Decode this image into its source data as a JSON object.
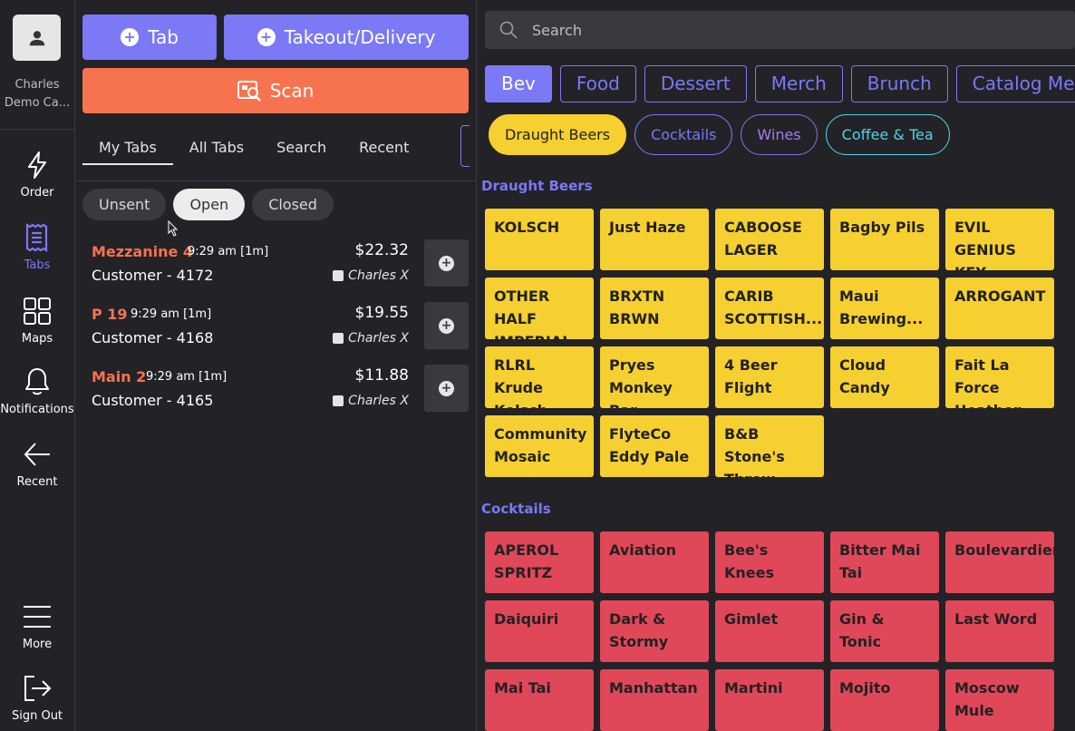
{
  "rail": {
    "user_line1": "Charles",
    "user_line2": "Demo Ca...",
    "items": [
      {
        "label": "Order",
        "icon": "lightning-icon"
      },
      {
        "label": "Tabs",
        "icon": "receipt-icon"
      },
      {
        "label": "Maps",
        "icon": "grid-icon"
      },
      {
        "label": "Notifications",
        "icon": "bell-icon"
      },
      {
        "label": "Recent",
        "icon": "arrow-left-icon"
      },
      {
        "label": "More",
        "icon": "hamburger-icon"
      },
      {
        "label": "Sign Out",
        "icon": "sign-out-icon"
      }
    ]
  },
  "panel": {
    "tab_button": "Tab",
    "takeout_button": "Takeout/Delivery",
    "scan_button": "Scan",
    "subtabs": [
      "My Tabs",
      "All Tabs",
      "Search",
      "Recent"
    ],
    "filters": [
      "Unsent",
      "Open",
      "Closed"
    ],
    "tabs": [
      {
        "location": "Mezzanine 4",
        "time": "9:29 am [1m]",
        "customer": "Customer - 4172",
        "amount": "$22.32",
        "server": "Charles X"
      },
      {
        "location": "P 19",
        "time": "9:29 am [1m]",
        "customer": "Customer - 4168",
        "amount": "$19.55",
        "server": "Charles X"
      },
      {
        "location": "Main 2",
        "time": "9:29 am [1m]",
        "customer": "Customer - 4165",
        "amount": "$11.88",
        "server": "Charles X"
      }
    ]
  },
  "menu": {
    "search_placeholder": "Search",
    "categories": [
      "Bev",
      "Food",
      "Dessert",
      "Merch",
      "Brunch",
      "Catalog Menu"
    ],
    "subcategories": [
      "Draught Beers",
      "Cocktails",
      "Wines",
      "Coffee & Tea"
    ],
    "draught_title": "Draught Beers",
    "draught_items": [
      "KOLSCH",
      "Just Haze",
      "CABOOSE LAGER",
      "Bagby Pils",
      "EVIL GENIUS KEY LIME...",
      "OTHER HALF IMPERIAL...",
      "BRXTN BRWN",
      "CARIB SCOTTISH...",
      "Maui Brewing...",
      "ARROGANT",
      "RLRL Krude Kolsch",
      "Pryes Monkey Bar",
      "4 Beer Flight",
      "Cloud Candy",
      "Fait La Force Heathen",
      "Community Mosaic",
      "FlyteCo Eddy Pale",
      "B&B Stone's Throw"
    ],
    "cocktails_title": "Cocktails",
    "cocktail_items": [
      "APEROL SPRITZ",
      "Aviation",
      "Bee's Knees",
      "Bitter Mai Tai",
      "Boulevardier",
      "Daiquiri",
      "Dark & Stormy",
      "Gimlet",
      "Gin & Tonic",
      "Last Word",
      "Mai Tai",
      "Manhattan",
      "Martini",
      "Mojito",
      "Moscow Mule"
    ]
  },
  "colors": {
    "accent": "#7b79f5",
    "scan": "#f7734f",
    "beer": "#f6d030",
    "cocktail": "#e0485a",
    "background": "#232227"
  }
}
